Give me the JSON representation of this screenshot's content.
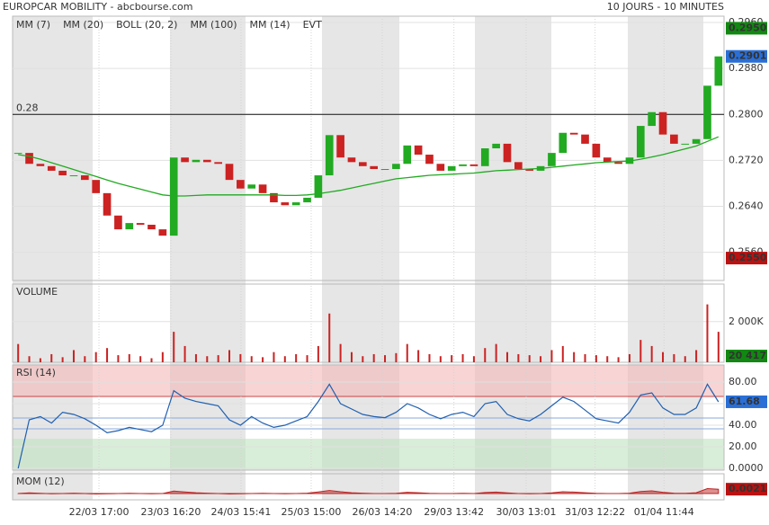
{
  "header": {
    "title": "EUROPCAR MOBILITY - abcbourse.com",
    "period": "10 JOURS - 10 MINUTES"
  },
  "chart_data": [
    {
      "type": "candlestick",
      "legend": [
        {
          "name": "MM (7)",
          "color": "#3333cc"
        },
        {
          "name": "MM (20)",
          "color": "#cc2222"
        },
        {
          "name": "BOLL (20, 2)",
          "color": "#f0a040"
        },
        {
          "name": "MM (100)",
          "color": "#22aa22",
          "values": [
            0.273,
            0.2727,
            0.2722,
            0.2716,
            0.271,
            0.2704,
            0.2698,
            0.2692,
            0.2686,
            0.268,
            0.2675,
            0.267,
            0.2665,
            0.266,
            0.2658,
            0.2658,
            0.2659,
            0.266,
            0.266,
            0.266,
            0.266,
            0.266,
            0.266,
            0.266,
            0.2659,
            0.2659,
            0.266,
            0.2662,
            0.2665,
            0.2668,
            0.2672,
            0.2676,
            0.268,
            0.2684,
            0.2688,
            0.269,
            0.2692,
            0.2694,
            0.2695,
            0.2696,
            0.2697,
            0.2698,
            0.27,
            0.2702,
            0.2703,
            0.2704,
            0.2705,
            0.2706,
            0.2708,
            0.271,
            0.2712,
            0.2714,
            0.2716,
            0.2717,
            0.2718,
            0.2719,
            0.2722,
            0.2726,
            0.273,
            0.2735,
            0.274,
            0.2745,
            0.2753,
            0.2761
          ]
        },
        {
          "name": "MM (14)",
          "color": "#222222"
        },
        {
          "name": "EVT",
          "color": "#222222"
        }
      ],
      "values": [
        0.2733,
        0.2714,
        0.271,
        0.2702,
        0.2694,
        0.2694,
        0.2686,
        0.2663,
        0.2624,
        0.26,
        0.2611,
        0.2608,
        0.26,
        0.2589,
        0.2725,
        0.2717,
        0.2721,
        0.2717,
        0.2714,
        0.2686,
        0.2671,
        0.2678,
        0.2663,
        0.2647,
        0.2642,
        0.2647,
        0.2655,
        0.2694,
        0.2764,
        0.2725,
        0.2717,
        0.271,
        0.2705,
        0.2705,
        0.2714,
        0.2746,
        0.273,
        0.2714,
        0.2702,
        0.271,
        0.2713,
        0.271,
        0.2741,
        0.2749,
        0.2717,
        0.2705,
        0.2702,
        0.271,
        0.2733,
        0.2768,
        0.2765,
        0.2749,
        0.2725,
        0.2717,
        0.2714,
        0.2725,
        0.278,
        0.2804,
        0.2765,
        0.2749,
        0.2749,
        0.2757,
        0.285,
        0.2901
      ],
      "up_color": "#22aa22",
      "down_color": "#cc2222",
      "ylim": [
        0.2511,
        0.2971
      ],
      "yticks": [
        {
          "value": 0.296,
          "label": "0.2960"
        },
        {
          "value": 0.288,
          "label": "0.2880"
        },
        {
          "value": 0.28,
          "label": "0.2800"
        },
        {
          "value": 0.272,
          "label": "0.2720"
        },
        {
          "value": 0.264,
          "label": "0.2640"
        },
        {
          "value": 0.256,
          "label": "0.2560"
        }
      ],
      "reference_line": 0.28,
      "tags": [
        {
          "value": 0.295,
          "label": "0.2950",
          "color": "#118811"
        },
        {
          "value": 0.2901,
          "label": "0.2901",
          "color": "#2a6fd6"
        },
        {
          "value": 0.255,
          "label": "0.2550",
          "color": "#bb1111"
        }
      ]
    },
    {
      "type": "bar",
      "title": "VOLUME",
      "color": "#cc2222",
      "values": [
        900000,
        300000,
        200000,
        400000,
        250000,
        600000,
        300000,
        500000,
        700000,
        350000,
        400000,
        300000,
        200000,
        500000,
        1500000,
        800000,
        400000,
        300000,
        350000,
        600000,
        400000,
        300000,
        250000,
        500000,
        300000,
        400000,
        350000,
        800000,
        2400000,
        900000,
        500000,
        300000,
        400000,
        350000,
        450000,
        900000,
        600000,
        400000,
        300000,
        350000,
        400000,
        300000,
        700000,
        900000,
        500000,
        400000,
        350000,
        300000,
        600000,
        800000,
        500000,
        400000,
        350000,
        300000,
        250000,
        400000,
        1100000,
        800000,
        500000,
        400000,
        300000,
        600000,
        2850000,
        1500000
      ],
      "ylim": [
        0,
        3850000
      ],
      "yticks": [
        {
          "value": 2000000,
          "label": "2 000K"
        }
      ],
      "tags": [
        {
          "value": 20417,
          "label": "20 417",
          "color": "#118811"
        }
      ]
    },
    {
      "type": "line",
      "title": "RSI (14)",
      "color": "#2060b0",
      "values": [
        0,
        45,
        48,
        42,
        52,
        50,
        46,
        40,
        33,
        35,
        38,
        36,
        34,
        40,
        72,
        65,
        62,
        60,
        58,
        45,
        40,
        48,
        42,
        38,
        40,
        44,
        48,
        62,
        78,
        60,
        55,
        50,
        48,
        47,
        52,
        60,
        56,
        50,
        46,
        50,
        52,
        48,
        60,
        62,
        50,
        46,
        44,
        50,
        58,
        66,
        62,
        54,
        46,
        44,
        42,
        52,
        68,
        70,
        56,
        50,
        50,
        56,
        78,
        61.68
      ],
      "ylim": [
        0,
        95.8
      ],
      "yticks": [
        {
          "value": 80,
          "label": "80.00"
        },
        {
          "value": 60,
          "label": "60.00"
        },
        {
          "value": 40,
          "label": "40.00"
        },
        {
          "value": 20,
          "label": "20.00"
        },
        {
          "value": 0,
          "label": "0.0000"
        }
      ],
      "tags": [
        {
          "value": 61.68,
          "label": "61.68",
          "color": "#2a6fd6"
        }
      ]
    },
    {
      "type": "area",
      "title": "MOM (12)",
      "color": "#bb2222",
      "values": [
        0,
        0.0003,
        0.0001,
        -0.0001,
        0,
        0.0002,
        0,
        -0.0002,
        -0.0001,
        0,
        0.0001,
        0,
        -0.0001,
        0,
        0.0012,
        0.0008,
        0.0004,
        0.0002,
        0,
        -0.0002,
        -0.0001,
        0,
        0.0001,
        0,
        -0.0001,
        0,
        0.0002,
        0.0008,
        0.0015,
        0.0009,
        0.0004,
        0.0002,
        0,
        0,
        0.0001,
        0.0006,
        0.0004,
        0.0001,
        0,
        0,
        0.0001,
        0,
        0.0005,
        0.0007,
        0.0003,
        0,
        -0.0001,
        0,
        0.0003,
        0.0009,
        0.0007,
        0.0004,
        0.0001,
        0,
        0,
        0.0002,
        0.001,
        0.0013,
        0.0006,
        0.0002,
        0.0001,
        0.0004,
        0.0024,
        0.0021
      ],
      "ylim": [
        -0.003,
        0.0095
      ],
      "tags": [
        {
          "value": 0.0021,
          "label": "0.0021",
          "color": "#bb1111"
        }
      ],
      "xlim": [
        -0.5,
        63.5
      ],
      "xticks": [
        {
          "value": 7.27,
          "label": "22/03 17:00"
        },
        {
          "value": 13.74,
          "label": "23/03 16:20"
        },
        {
          "value": 20.05,
          "label": "24/03 15:41"
        },
        {
          "value": 26.36,
          "label": "25/03 15:00"
        },
        {
          "value": 32.75,
          "label": "26/03 14:20"
        },
        {
          "value": 39.2,
          "label": "29/03 13:42"
        },
        {
          "value": 45.7,
          "label": "30/03 13:01"
        },
        {
          "value": 51.9,
          "label": "31/03 12:22"
        },
        {
          "value": 58.1,
          "label": "01/04 11:44"
        }
      ]
    }
  ]
}
